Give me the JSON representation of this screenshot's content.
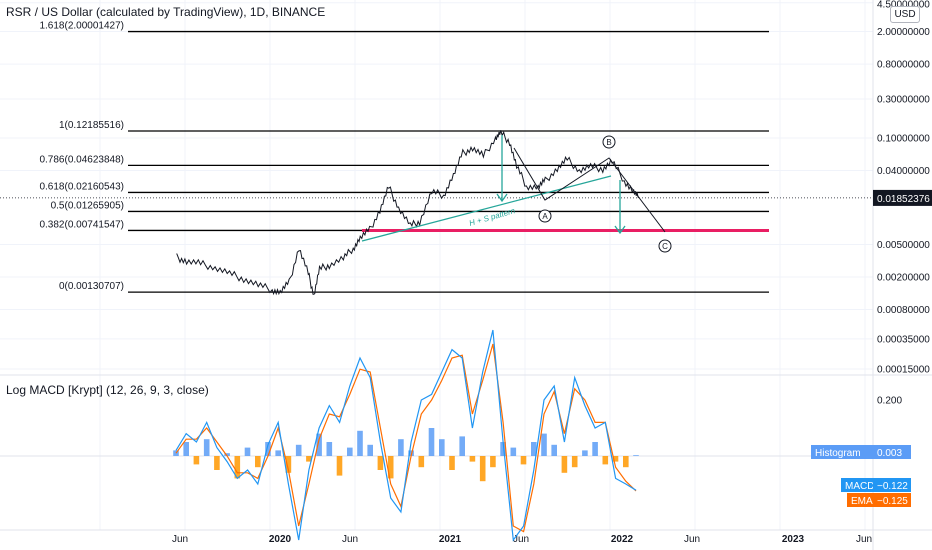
{
  "header": {
    "title": "RSR / US Dollar (calculated by TradingView), 1D, BINANCE",
    "currency_button": "USD",
    "last_price_label": "0.01852376"
  },
  "macd_panel": {
    "title": "Log MACD [Krypt] (12, 26, 9, 3, close)",
    "legend": [
      {
        "label": "Histogram",
        "value": "0.003",
        "color": "#5b9cf6"
      },
      {
        "label": "MACD",
        "value": "−0.122",
        "color": "#2196f3"
      },
      {
        "label": "EMA",
        "value": "−0.125",
        "color": "#ff6d00"
      }
    ],
    "axis_ticks": [
      {
        "label": "0.200",
        "value": 0.2
      }
    ]
  },
  "colors": {
    "price_line": "#131722",
    "fib_line": "#000000",
    "support_line": "#e91e63",
    "annotation": "#26a69a",
    "histogram_pos": "#5b9cf6",
    "histogram_neg": "#ff9800",
    "macd_line": "#2196f3",
    "ema_line": "#ff6d00"
  },
  "chart_data": [
    {
      "type": "line",
      "scale": "log",
      "x_tick_labels": [
        "Jun",
        "2020",
        "Jun",
        "2021",
        "Jun",
        "2022",
        "Jun",
        "2023",
        "Jun"
      ],
      "y_ticks": [
        {
          "label": "4.50000000",
          "value": 4.5
        },
        {
          "label": "2.00000000",
          "value": 2.0
        },
        {
          "label": "0.80000000",
          "value": 0.8
        },
        {
          "label": "0.30000000",
          "value": 0.3
        },
        {
          "label": "0.10000000",
          "value": 0.1
        },
        {
          "label": "0.04000000",
          "value": 0.04
        },
        {
          "label": "0.00500000",
          "value": 0.005
        },
        {
          "label": "0.00200000",
          "value": 0.002
        },
        {
          "label": "0.00080000",
          "value": 0.0008
        },
        {
          "label": "0.00035000",
          "value": 0.00035
        },
        {
          "label": "0.00015000",
          "value": 0.00015
        }
      ],
      "fib_levels": [
        {
          "label": "1.618(2.00001427)",
          "value": 2.00001427
        },
        {
          "label": "1(0.12185516)",
          "value": 0.12185516
        },
        {
          "label": "0.786(0.04623848)",
          "value": 0.04623848
        },
        {
          "label": "0.618(0.02160543)",
          "value": 0.02160543
        },
        {
          "label": "0.5(0.01265905)",
          "value": 0.01265905
        },
        {
          "label": "0.382(0.00741547)",
          "value": 0.00741547
        },
        {
          "label": "0(0.00130707)",
          "value": 0.00130707
        }
      ],
      "last_price": 0.01852376,
      "series": [
        {
          "x": [
            "2019-05-25",
            "2019-06-15",
            "2019-07-15",
            "2019-08-15",
            "2019-09-15",
            "2019-10-15",
            "2019-11-15",
            "2019-12-15",
            "2020-01-01",
            "2020-01-20",
            "2020-02-10",
            "2020-03-01",
            "2020-03-13",
            "2020-03-25",
            "2020-04-15",
            "2020-05-15",
            "2020-06-05",
            "2020-06-20",
            "2020-07-10",
            "2020-08-01",
            "2020-08-20",
            "2020-09-10",
            "2020-10-05",
            "2020-10-25",
            "2020-11-20",
            "2020-12-15",
            "2021-01-05",
            "2021-01-25",
            "2021-02-15",
            "2021-03-10",
            "2021-04-05",
            "2021-04-16",
            "2021-05-05",
            "2021-05-20",
            "2021-06-10",
            "2021-07-05",
            "2021-07-20",
            "2021-08-15",
            "2021-09-05",
            "2021-10-01",
            "2021-10-25",
            "2021-11-20",
            "2021-12-10",
            "2022-01-05",
            "2022-01-25",
            "2022-02-05"
          ],
          "y": [
            0.0035,
            0.0031,
            0.0029,
            0.0026,
            0.0022,
            0.0019,
            0.0016,
            0.0014,
            0.0013,
            0.0017,
            0.0045,
            0.0022,
            0.0012,
            0.0025,
            0.0028,
            0.0034,
            0.0045,
            0.006,
            0.0075,
            0.013,
            0.025,
            0.014,
            0.0085,
            0.0095,
            0.022,
            0.02,
            0.035,
            0.065,
            0.075,
            0.06,
            0.1,
            0.115,
            0.09,
            0.045,
            0.026,
            0.025,
            0.03,
            0.042,
            0.055,
            0.04,
            0.045,
            0.042,
            0.052,
            0.03,
            0.022,
            0.0185
          ]
        }
      ],
      "annotations": [
        "H + S pattern",
        "A",
        "B",
        "C"
      ]
    },
    {
      "type": "bar",
      "title": "Log MACD [Krypt] (12, 26, 9, 3, close)",
      "series": [
        {
          "name": "Histogram",
          "values": [
            0.02,
            0.05,
            -0.03,
            0.06,
            -0.05,
            0.01,
            -0.08,
            0.03,
            -0.04,
            0.05,
            0.02,
            -0.06,
            0.04,
            -0.02,
            0.08,
            0.05,
            -0.07,
            0.03,
            0.09,
            0.04,
            -0.05,
            -0.08,
            0.06,
            0.02,
            -0.04,
            0.1,
            0.06,
            -0.05,
            0.07,
            -0.02,
            -0.09,
            -0.04,
            0.05,
            0.03,
            -0.03,
            0.05,
            0.08,
            0.04,
            -0.06,
            -0.04,
            0.02,
            0.05,
            -0.03,
            -0.02,
            -0.04,
            0.003
          ]
        },
        {
          "name": "MACD",
          "values": [
            0.02,
            0.08,
            0.05,
            0.12,
            0.03,
            -0.02,
            -0.08,
            -0.05,
            -0.1,
            0.04,
            0.12,
            -0.1,
            -0.3,
            -0.05,
            0.1,
            0.18,
            0.12,
            0.25,
            0.35,
            0.28,
            0.05,
            -0.15,
            -0.2,
            0.05,
            0.2,
            0.22,
            0.3,
            0.38,
            0.35,
            0.1,
            0.3,
            0.45,
            0.05,
            -0.3,
            -0.25,
            -0.05,
            0.2,
            0.25,
            0.05,
            0.28,
            0.18,
            0.1,
            0.12,
            -0.08,
            -0.1,
            -0.122
          ]
        },
        {
          "name": "EMA",
          "values": [
            0.01,
            0.06,
            0.06,
            0.1,
            0.05,
            0.0,
            -0.06,
            -0.06,
            -0.08,
            0.0,
            0.1,
            -0.05,
            -0.25,
            -0.1,
            0.06,
            0.15,
            0.14,
            0.22,
            0.31,
            0.3,
            0.1,
            -0.1,
            -0.18,
            0.0,
            0.15,
            0.2,
            0.27,
            0.35,
            0.36,
            0.15,
            0.27,
            0.4,
            0.12,
            -0.25,
            -0.27,
            -0.1,
            0.15,
            0.23,
            0.08,
            0.24,
            0.2,
            0.12,
            0.12,
            -0.04,
            -0.09,
            -0.125
          ]
        }
      ]
    }
  ]
}
